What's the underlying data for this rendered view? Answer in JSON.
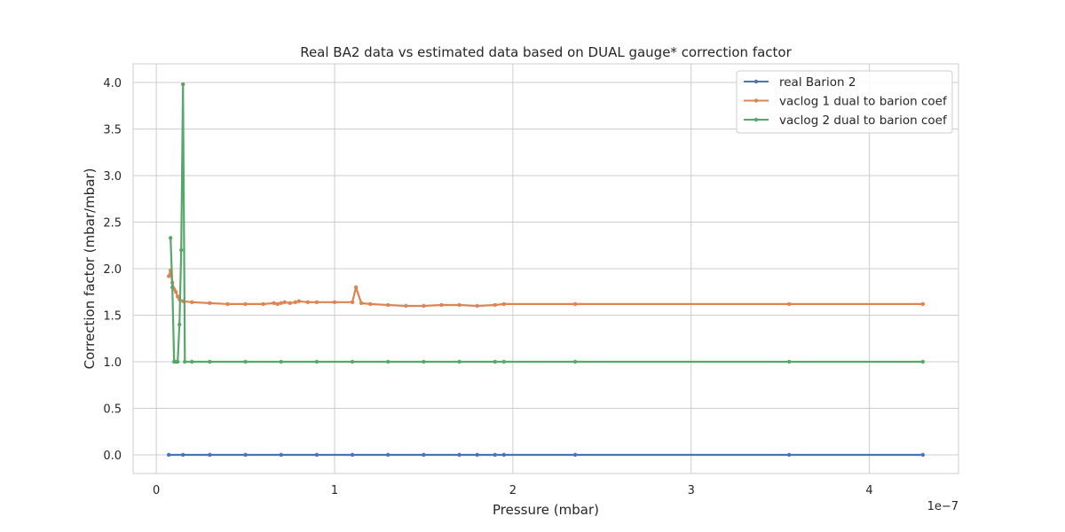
{
  "chart_data": {
    "type": "line",
    "title": "Real BA2 data vs estimated data based on DUAL gauge* correction factor",
    "xlabel": "Pressure (mbar)",
    "ylabel": "Correction factor (mbar/mbar)",
    "x_offset_text": "1e−7",
    "xlim": [
      -0.13,
      4.5
    ],
    "ylim": [
      -0.2,
      4.2
    ],
    "x_ticks": [
      0,
      1,
      2,
      3,
      4
    ],
    "x_tick_labels": [
      "0",
      "1",
      "2",
      "3",
      "4"
    ],
    "y_ticks": [
      0.0,
      0.5,
      1.0,
      1.5,
      2.0,
      2.5,
      3.0,
      3.5,
      4.0
    ],
    "y_tick_labels": [
      "0.0",
      "0.5",
      "1.0",
      "1.5",
      "2.0",
      "2.5",
      "3.0",
      "3.5",
      "4.0"
    ],
    "grid": true,
    "legend_position": "top-right",
    "series": [
      {
        "name": "real Barion 2",
        "color": "#4c72b0",
        "x": [
          0.07,
          0.15,
          0.3,
          0.5,
          0.7,
          0.9,
          1.1,
          1.3,
          1.5,
          1.7,
          1.8,
          1.9,
          1.95,
          2.35,
          3.55,
          4.3
        ],
        "y": [
          0,
          0,
          0,
          0,
          0,
          0,
          0,
          0,
          0,
          0,
          0,
          0,
          0,
          0,
          0,
          0
        ]
      },
      {
        "name": "vaclog 1 dual to barion coef",
        "color": "#dd8452",
        "x": [
          0.07,
          0.08,
          0.09,
          0.1,
          0.11,
          0.12,
          0.13,
          0.15,
          0.2,
          0.3,
          0.4,
          0.5,
          0.6,
          0.66,
          0.68,
          0.7,
          0.72,
          0.75,
          0.78,
          0.8,
          0.85,
          0.9,
          1.0,
          1.1,
          1.12,
          1.15,
          1.2,
          1.3,
          1.4,
          1.5,
          1.6,
          1.7,
          1.8,
          1.9,
          1.95,
          2.35,
          3.55,
          4.3
        ],
        "y": [
          1.92,
          1.98,
          1.85,
          1.78,
          1.75,
          1.7,
          1.67,
          1.65,
          1.64,
          1.63,
          1.62,
          1.62,
          1.62,
          1.63,
          1.62,
          1.63,
          1.64,
          1.63,
          1.64,
          1.65,
          1.64,
          1.64,
          1.64,
          1.64,
          1.8,
          1.63,
          1.62,
          1.61,
          1.6,
          1.6,
          1.61,
          1.61,
          1.6,
          1.61,
          1.62,
          1.62,
          1.62,
          1.62
        ]
      },
      {
        "name": "vaclog 2 dual to barion coef",
        "color": "#55a868",
        "x": [
          0.08,
          0.09,
          0.1,
          0.11,
          0.12,
          0.13,
          0.14,
          0.15,
          0.16,
          0.2,
          0.3,
          0.5,
          0.7,
          0.9,
          1.1,
          1.3,
          1.5,
          1.7,
          1.9,
          1.95,
          2.35,
          3.55,
          4.3
        ],
        "y": [
          2.33,
          1.8,
          1.0,
          1.0,
          1.0,
          1.4,
          2.2,
          3.98,
          1.0,
          1.0,
          1.0,
          1.0,
          1.0,
          1.0,
          1.0,
          1.0,
          1.0,
          1.0,
          1.0,
          1.0,
          1.0,
          1.0,
          1.0
        ]
      }
    ]
  }
}
